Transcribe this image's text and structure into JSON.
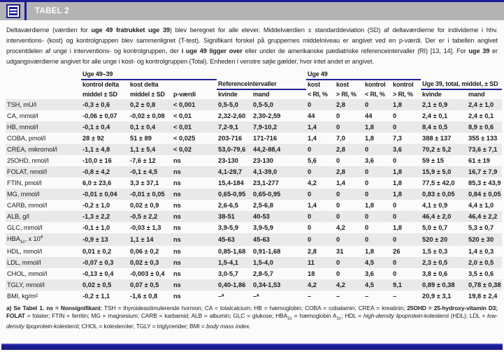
{
  "header": {
    "title": "TABEL 2"
  },
  "description": {
    "segments": [
      {
        "t": "Deltaværdierne (værdien for "
      },
      {
        "t": "uge 49 fratrukket uge 39",
        "b": true
      },
      {
        "t": ") blev beregnet for alle elever. Middelværdien ± standarddeviation (SD) af deltaværdierne for individerne i hhv. interventions- (kost) og kontrolgruppen blev sammenlignet (T-test). Signifikant forskel på gruppernes middelniveau er angivet ved en p-værdi. Der er i tabellen angivet procentdelen af unge i interventions- og kontrolgruppen, der "
      },
      {
        "t": "i uge 49 ligger over",
        "b": true
      },
      {
        "t": " eller under de amerikanske pædiatriske referenceintervaller (RI) [13, 14]. For "
      },
      {
        "t": "uge 39",
        "b": true
      },
      {
        "t": " er udgangsværdierne angivet for alle unge i kost- og kontrolgruppen (Total). Enheden i venstre søjle gælder, hvor intet andet er angivet."
      }
    ]
  },
  "table": {
    "groups": {
      "delta": "Uge 49–39",
      "ri": "Referenceintervaller",
      "uge49": "Uge 49",
      "uge39": "Uge 39, total, middel, ± SD"
    },
    "columns": {
      "c2a": "kontrol delta",
      "c2b": "middel ± SD",
      "c3a": "kost delta",
      "c3b": "middel ± SD",
      "c4b": "p-værdi",
      "c5b": "kvinde",
      "c6b": "mand",
      "c7a": "kost",
      "c7b": "< RI, %",
      "c8a": "kost",
      "c8b": "> RI, %",
      "c9a": "kontrol",
      "c9b": "< RI, %",
      "c10a": "kontrol",
      "c10b": "> RI, %",
      "c11b": "kvinde",
      "c12b": "mand"
    },
    "rows": [
      {
        "label": "TSH, mU/l",
        "cells": [
          "-0,3 ± 0,6",
          "0,2 ± 0,8",
          "< 0,001",
          "0,5-5,0",
          "0,5-5,0",
          "0",
          "2,8",
          "0",
          "1,8",
          "2,1 ± 0,9",
          "2,4 ± 1,0"
        ]
      },
      {
        "label": "CA, mmol/l",
        "cells": [
          "-0,06 ± 0,07",
          "-0,02 ± 0,08",
          "< 0,01",
          "2,32-2,60",
          "2,30-2,59",
          "44",
          "0",
          "44",
          "0",
          "2,4 ± 0,1",
          "2,4 ± 0,1"
        ]
      },
      {
        "label": "HB, mmol/l",
        "cells": [
          "-0,1 ± 0,4",
          "0,1 ± 0,4",
          "< 0,01",
          "7,2-9,1",
          "7,9-10,2",
          "1,4",
          "0",
          "1,8",
          "0",
          "8,4 ± 0,5",
          "8,9 ± 0,6"
        ]
      },
      {
        "label": "COBA, pmol/l",
        "cells": [
          "28 ± 92",
          "51 ± 89",
          "< 0,025",
          "203-716",
          "171-716",
          "1,4",
          "7,0",
          "1,8",
          "7,3",
          "388 ± 137",
          "355 ± 133"
        ]
      },
      {
        "label": "CREA, mikromol/l",
        "cells": [
          "-1,1 ± 4,8",
          "1,1 ± 5,4",
          "< 0,02",
          "53,0-79,6",
          "44,2-88,4",
          "0",
          "2,8",
          "0",
          "3,6",
          "70,2 ± 5,2",
          "73,6 ± 7,1"
        ]
      },
      {
        "label": "25OHD, nmol/l",
        "cells": [
          "-10,0 ± 16",
          "-7,6 ± 12",
          "ns",
          "23-130",
          "23-130",
          "5,6",
          "0",
          "3,6",
          "0",
          "59 ± 15",
          "61 ± 19"
        ]
      },
      {
        "label": "FOLAT, nmol/l",
        "cells": [
          "-0,8 ± 4,2",
          "-0,1 ± 4,5",
          "ns",
          "4,1-28,7",
          "4,1-39,0",
          "0",
          "2,8",
          "0",
          "1,8",
          "15,9 ± 5,0",
          "16,7 ± 7,9"
        ]
      },
      {
        "label": "FTIN, pmol/l",
        "cells": [
          "6,0 ± 23,6",
          "3,3 ± 37,1",
          "ns",
          "15,4-184",
          "23,1-277",
          "4,2",
          "1,4",
          "0",
          "1,8",
          "77,5 ± 42,0",
          "85,3 ± 43,9"
        ]
      },
      {
        "label": "MG, mmol/l",
        "cells": [
          "-0,01 ± 0,04",
          "-0,01 ± 0,05",
          "ns",
          "0,65-0,95",
          "0,65-0,95",
          "0",
          "0",
          "0",
          "1,8",
          "0,83 ± 0,05",
          "0,84 ± 0,05"
        ]
      },
      {
        "label": "CARB, mmol/l",
        "cells": [
          "-0,2 ± 1,0",
          "0,02 ± 0,9",
          "ns",
          "2,6-6,5",
          "2,5-6,8",
          "1,4",
          "0",
          "1,8",
          "0",
          "4,1 ± 0,9",
          "4,4 ± 1,0"
        ]
      },
      {
        "label": "ALB, g/l",
        "cells": [
          "-1,3 ± 2,2",
          "-0,5 ± 2,2",
          "ns",
          "38-51",
          "40-53",
          "0",
          "0",
          "0",
          "0",
          "46,4 ± 2,0",
          "46,4 ± 2,2"
        ]
      },
      {
        "label": "GLC, mmol/l",
        "cells": [
          "-0,1 ± 1,0",
          "-0,03 ± 1,3",
          "ns",
          "3,9-5,9",
          "3,9-5,9",
          "0",
          "4,2",
          "0",
          "1,8",
          "5,0 ± 0,7",
          "5,3 ± 0,7"
        ]
      },
      {
        "label": [
          {
            "t": "HBA"
          },
          {
            "t": "1c",
            "sub": true
          },
          {
            "t": ", x 10"
          },
          {
            "t": "4",
            "sup": true
          }
        ],
        "cells": [
          "-0,9 ± 13",
          "1,1 ± 14",
          "ns",
          "45-63",
          "45-63",
          "0",
          "0",
          "0",
          "0",
          "520 ± 20",
          "520 ± 30"
        ]
      },
      {
        "label": "HDL, mmol/l",
        "cells": [
          "0,01 ± 0,2",
          "0,06 ± 0,2",
          "ns",
          "0,85-1,68",
          "0,91-1,68",
          "2,8",
          "31",
          "1,8",
          "26",
          "1,5 ± 0,3",
          "1,4 ± 0,3"
        ]
      },
      {
        "label": "LDL, mmol/l",
        "cells": [
          "-0,07 ± 0,3",
          "0,02 ± 0,3",
          "ns",
          "1,5-4,1",
          "1,5-4,0",
          "11",
          "0",
          "4,5",
          "0",
          "2,3 ± 0,5",
          "2,0 ± 0,5"
        ]
      },
      {
        "label": "CHOL, mmol/l",
        "cells": [
          "-0,13 ± 0,4",
          "-0,003 ± 0,4",
          "ns",
          "3,0-5,7",
          "2,8-5,7",
          "18",
          "0",
          "3,6",
          "0",
          "3,8 ± 0,6",
          "3,5 ± 0,6"
        ]
      },
      {
        "label": "TGLY, mmol/l",
        "cells": [
          "0,02 ± 0,5",
          "0,07 ± 0,5",
          "ns",
          "0,40-1,86",
          "0,34-1,53",
          "4,2",
          "4,2",
          "4,5",
          "9,1",
          "0,89 ± 0,38",
          "0,78 ± 0,38"
        ]
      },
      {
        "label": "BMI, kg/m²",
        "cells": [
          "-0,2 ± 1,1",
          "-1,6 ± 0,8",
          "ns",
          "–ᵃ",
          "–ᵃ",
          "–",
          "–",
          "–",
          "–",
          "20,9 ± 3,1",
          "19,8 ± 2,4"
        ]
      }
    ]
  },
  "footnote": {
    "segments": [
      {
        "t": "a) Se Tabel 1. ",
        "b": true
      },
      {
        "t": "ns = Nonsignifikant",
        "b": true
      },
      {
        "t": "; TSH = thyroideastimulerende hormon; CA = totalcalcium; HB = hæmoglobin; COBA = cobalamin; CREA = kreatinin; "
      },
      {
        "t": "25OHD = 25-hydroxy-vitamin D3; FOLAT",
        "b": true
      },
      {
        "t": " = folater; FTIN = ferritin; MG = magnesium; CARB = karbamid; ALB = albumin; GLC = glukose; HBA"
      },
      {
        "t": "1c",
        "sub": true
      },
      {
        "t": " = hæmoglobin A"
      },
      {
        "t": "1c",
        "sub": true
      },
      {
        "t": "; HDL = "
      },
      {
        "t": "high-density lipoprotein",
        "i": true
      },
      {
        "t": "-kolesterol (HDL); LDL = "
      },
      {
        "t": "low-density lipoprotein",
        "i": true
      },
      {
        "t": "-kolesterol; CHOL = kolesteroler; TGLY = triglycerider; BMI = "
      },
      {
        "t": "body mass index",
        "i": true
      },
      {
        "t": "."
      }
    ]
  },
  "colors": {
    "navy": "#1d1d99",
    "title_bar_gray": "#b3b3b3",
    "row_stripe": "#e9e9e9"
  }
}
